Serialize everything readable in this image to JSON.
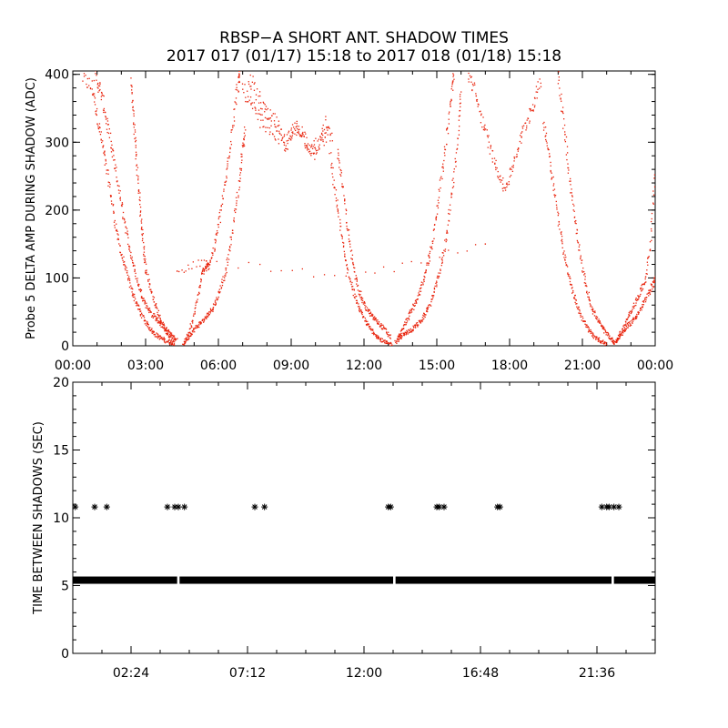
{
  "header": {
    "title": "RBSP−A SHORT ANT. SHADOW TIMES",
    "subtitle": "2017 017 (01/17) 15:18 to 2017 018 (01/18) 15:18"
  },
  "colors": {
    "top_points": "#e8230c",
    "bottom_points": "#000000",
    "axes": "#000000"
  },
  "chart_data": [
    {
      "type": "scatter",
      "ylabel": "Probe 5 DELTA AMP DURING SHADOW (ADC)",
      "xlabel": "",
      "x_unit": "hours",
      "xlim": [
        0,
        24
      ],
      "ylim": [
        0,
        405
      ],
      "x_ticks": [
        {
          "value": 0,
          "label": "00:00"
        },
        {
          "value": 3,
          "label": "03:00"
        },
        {
          "value": 6,
          "label": "06:00"
        },
        {
          "value": 9,
          "label": "09:00"
        },
        {
          "value": 12,
          "label": "12:00"
        },
        {
          "value": 15,
          "label": "15:00"
        },
        {
          "value": 18,
          "label": "18:00"
        },
        {
          "value": 21,
          "label": "21:00"
        },
        {
          "value": 24,
          "label": "00:00"
        }
      ],
      "y_ticks": [
        {
          "value": 0,
          "label": "0"
        },
        {
          "value": 100,
          "label": "100"
        },
        {
          "value": 200,
          "label": "200"
        },
        {
          "value": 300,
          "label": "300"
        },
        {
          "value": 400,
          "label": "400"
        }
      ],
      "marker": "dot",
      "series": [
        {
          "points": [
            [
              0.4,
              395
            ],
            [
              0.8,
              380
            ],
            [
              1.0,
              340
            ],
            [
              1.2,
              300
            ],
            [
              1.4,
              260
            ],
            [
              1.6,
              215
            ],
            [
              1.8,
              170
            ],
            [
              2.0,
              135
            ],
            [
              2.2,
              110
            ],
            [
              2.4,
              85
            ],
            [
              2.6,
              65
            ],
            [
              2.8,
              48
            ],
            [
              3.0,
              35
            ],
            [
              3.2,
              25
            ],
            [
              3.4,
              17
            ],
            [
              3.6,
              12
            ],
            [
              3.8,
              8
            ],
            [
              4.0,
              5
            ],
            [
              4.2,
              4
            ]
          ]
        },
        {
          "points": [
            [
              0.9,
              400
            ],
            [
              1.1,
              380
            ],
            [
              1.3,
              350
            ],
            [
              1.5,
              310
            ],
            [
              1.7,
              270
            ],
            [
              1.9,
              230
            ],
            [
              2.1,
              190
            ],
            [
              2.3,
              150
            ],
            [
              2.5,
              120
            ],
            [
              2.7,
              90
            ],
            [
              2.9,
              70
            ],
            [
              3.1,
              55
            ],
            [
              3.3,
              45
            ],
            [
              3.5,
              38
            ],
            [
              3.7,
              30
            ],
            [
              3.9,
              22
            ],
            [
              4.1,
              15
            ],
            [
              4.3,
              8
            ]
          ]
        },
        {
          "points": [
            [
              2.4,
              390
            ],
            [
              2.5,
              340
            ],
            [
              2.6,
              290
            ],
            [
              2.7,
              240
            ],
            [
              2.8,
              190
            ],
            [
              2.9,
              150
            ],
            [
              3.0,
              115
            ],
            [
              3.2,
              85
            ],
            [
              3.4,
              60
            ],
            [
              3.6,
              40
            ],
            [
              3.8,
              25
            ],
            [
              4.0,
              12
            ],
            [
              4.2,
              6
            ]
          ]
        },
        {
          "points": [
            [
              4.55,
              2
            ],
            [
              4.7,
              10
            ],
            [
              4.9,
              20
            ],
            [
              5.1,
              28
            ],
            [
              5.3,
              35
            ],
            [
              5.5,
              42
            ],
            [
              5.7,
              52
            ],
            [
              5.9,
              65
            ],
            [
              6.1,
              85
            ],
            [
              6.3,
              110
            ],
            [
              6.5,
              150
            ],
            [
              6.7,
              200
            ],
            [
              6.9,
              250
            ],
            [
              7.0,
              290
            ],
            [
              7.1,
              320
            ]
          ]
        },
        {
          "points": [
            [
              4.6,
              5
            ],
            [
              4.8,
              20
            ],
            [
              5.0,
              45
            ],
            [
              5.2,
              80
            ],
            [
              5.35,
              110
            ],
            [
              5.5,
              115
            ],
            [
              5.6,
              118
            ],
            [
              5.8,
              140
            ],
            [
              6.0,
              175
            ],
            [
              6.2,
              220
            ],
            [
              6.4,
              270
            ],
            [
              6.6,
              330
            ],
            [
              6.8,
              385
            ],
            [
              6.9,
              400
            ]
          ]
        },
        {
          "points": [
            [
              7.0,
              380
            ],
            [
              7.4,
              350
            ],
            [
              7.8,
              330
            ],
            [
              8.2,
              320
            ],
            [
              8.6,
              300
            ],
            [
              9.0,
              310
            ],
            [
              9.4,
              320
            ],
            [
              9.8,
              290
            ],
            [
              10.2,
              300
            ],
            [
              10.5,
              310
            ]
          ]
        },
        {
          "points": [
            [
              7.2,
              400
            ],
            [
              7.6,
              370
            ],
            [
              8.0,
              340
            ],
            [
              8.4,
              330
            ],
            [
              8.8,
              290
            ],
            [
              9.2,
              330
            ],
            [
              9.6,
              300
            ],
            [
              10.0,
              280
            ],
            [
              10.4,
              330
            ],
            [
              10.7,
              300
            ]
          ]
        },
        {
          "points": [
            [
              10.6,
              280
            ],
            [
              10.8,
              230
            ],
            [
              11.0,
              180
            ],
            [
              11.2,
              135
            ],
            [
              11.4,
              100
            ],
            [
              11.6,
              75
            ],
            [
              11.8,
              55
            ],
            [
              12.0,
              40
            ],
            [
              12.2,
              28
            ],
            [
              12.4,
              20
            ],
            [
              12.6,
              12
            ],
            [
              12.8,
              6
            ],
            [
              13.0,
              3
            ],
            [
              13.2,
              2
            ]
          ]
        },
        {
          "points": [
            [
              10.9,
              290
            ],
            [
              11.1,
              240
            ],
            [
              11.3,
              180
            ],
            [
              11.5,
              130
            ],
            [
              11.7,
              95
            ],
            [
              11.9,
              70
            ],
            [
              12.1,
              55
            ],
            [
              12.3,
              45
            ],
            [
              12.5,
              38
            ],
            [
              12.7,
              30
            ],
            [
              12.9,
              22
            ],
            [
              13.1,
              12
            ]
          ]
        },
        {
          "points": [
            [
              13.3,
              5
            ],
            [
              13.5,
              12
            ],
            [
              13.7,
              18
            ],
            [
              13.9,
              22
            ],
            [
              14.1,
              28
            ],
            [
              14.3,
              35
            ],
            [
              14.5,
              45
            ],
            [
              14.7,
              60
            ],
            [
              14.9,
              80
            ],
            [
              15.1,
              105
            ],
            [
              15.3,
              140
            ],
            [
              15.5,
              190
            ],
            [
              15.7,
              250
            ],
            [
              15.9,
              320
            ],
            [
              16.0,
              380
            ]
          ]
        },
        {
          "points": [
            [
              13.4,
              10
            ],
            [
              13.6,
              25
            ],
            [
              13.8,
              40
            ],
            [
              14.0,
              55
            ],
            [
              14.2,
              70
            ],
            [
              14.4,
              90
            ],
            [
              14.6,
              115
            ],
            [
              14.8,
              150
            ],
            [
              15.0,
              195
            ],
            [
              15.2,
              250
            ],
            [
              15.4,
              310
            ],
            [
              15.6,
              370
            ],
            [
              15.7,
              400
            ]
          ]
        },
        {
          "points": [
            [
              16.3,
              400
            ],
            [
              16.6,
              370
            ],
            [
              16.9,
              330
            ],
            [
              17.2,
              290
            ],
            [
              17.5,
              260
            ],
            [
              17.8,
              230
            ],
            [
              18.1,
              260
            ],
            [
              18.4,
              300
            ],
            [
              18.7,
              330
            ],
            [
              19.0,
              360
            ],
            [
              19.3,
              390
            ]
          ]
        },
        {
          "points": [
            [
              19.4,
              330
            ],
            [
              19.6,
              290
            ],
            [
              19.8,
              240
            ],
            [
              20.0,
              190
            ],
            [
              20.2,
              145
            ],
            [
              20.4,
              110
            ],
            [
              20.6,
              80
            ],
            [
              20.8,
              58
            ],
            [
              21.0,
              40
            ],
            [
              21.2,
              27
            ],
            [
              21.4,
              17
            ],
            [
              21.6,
              10
            ],
            [
              21.8,
              6
            ],
            [
              22.0,
              3
            ]
          ]
        },
        {
          "points": [
            [
              20.0,
              400
            ],
            [
              20.2,
              340
            ],
            [
              20.4,
              270
            ],
            [
              20.6,
              210
            ],
            [
              20.8,
              160
            ],
            [
              21.0,
              115
            ],
            [
              21.2,
              80
            ],
            [
              21.4,
              55
            ],
            [
              21.6,
              40
            ],
            [
              21.8,
              28
            ],
            [
              22.0,
              18
            ],
            [
              22.2,
              10
            ],
            [
              22.3,
              5
            ]
          ]
        },
        {
          "points": [
            [
              22.3,
              2
            ],
            [
              22.5,
              12
            ],
            [
              22.7,
              22
            ],
            [
              22.9,
              30
            ],
            [
              23.1,
              38
            ],
            [
              23.3,
              48
            ],
            [
              23.5,
              60
            ],
            [
              23.7,
              75
            ],
            [
              23.9,
              90
            ],
            [
              24.0,
              100
            ]
          ]
        },
        {
          "points": [
            [
              22.4,
              8
            ],
            [
              22.6,
              20
            ],
            [
              22.8,
              35
            ],
            [
              23.0,
              50
            ],
            [
              23.2,
              65
            ],
            [
              23.4,
              80
            ],
            [
              23.6,
              100
            ],
            [
              23.8,
              150
            ],
            [
              24.0,
              260
            ]
          ]
        },
        {
          "points": [
            [
              4.3,
              110
            ],
            [
              5.5,
              125
            ],
            [
              11.7,
              100
            ],
            [
              17.0,
              150
            ]
          ]
        }
      ]
    },
    {
      "type": "scatter",
      "ylabel": "TIME BETWEEN SHADOWS (SEC)",
      "xlabel": "",
      "x_unit": "hours",
      "xlim": [
        0,
        24
      ],
      "ylim": [
        0,
        20
      ],
      "x_ticks": [
        {
          "value": 2.4,
          "label": "02:24"
        },
        {
          "value": 7.2,
          "label": "07:12"
        },
        {
          "value": 12.0,
          "label": "12:00"
        },
        {
          "value": 16.8,
          "label": "16:48"
        },
        {
          "value": 21.6,
          "label": "21:36"
        }
      ],
      "y_ticks": [
        {
          "value": 0,
          "label": "0"
        },
        {
          "value": 5,
          "label": "5"
        },
        {
          "value": 10,
          "label": "10"
        },
        {
          "value": 15,
          "label": "15"
        },
        {
          "value": 20,
          "label": "20"
        }
      ],
      "marker": "asterisk",
      "series": [
        {
          "name": "",
          "baseline": {
            "y": 5.4,
            "x_start": 0.0,
            "x_end": 24.0,
            "gaps": [
              [
                4.3,
                4.4
              ],
              [
                13.2,
                13.3
              ],
              [
                22.2,
                22.3
              ]
            ]
          }
        },
        {
          "points": [
            [
              0.1,
              10.8
            ],
            [
              0.9,
              10.8
            ],
            [
              1.4,
              10.8
            ],
            [
              3.9,
              10.8
            ],
            [
              4.2,
              10.8
            ],
            [
              4.35,
              10.8
            ],
            [
              4.6,
              10.8
            ],
            [
              7.5,
              10.8
            ],
            [
              7.9,
              10.8
            ],
            [
              13.0,
              10.8
            ],
            [
              13.1,
              10.8
            ],
            [
              15.0,
              10.8
            ],
            [
              15.1,
              10.8
            ],
            [
              15.3,
              10.8
            ],
            [
              17.5,
              10.8
            ],
            [
              17.6,
              10.8
            ],
            [
              21.8,
              10.8
            ],
            [
              22.0,
              10.8
            ],
            [
              22.1,
              10.8
            ],
            [
              22.3,
              10.8
            ],
            [
              22.5,
              10.8
            ]
          ]
        }
      ]
    }
  ]
}
